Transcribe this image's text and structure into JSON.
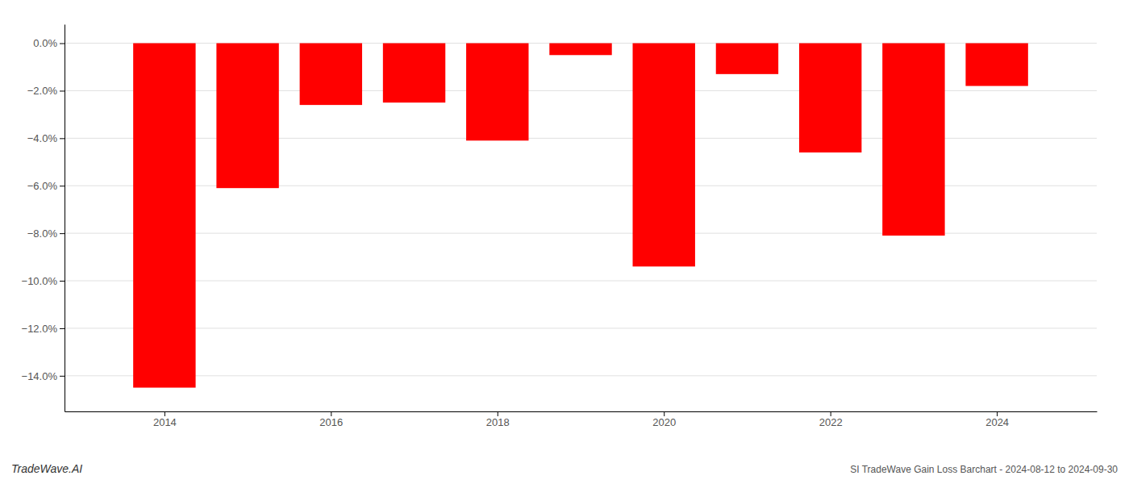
{
  "chart_data": {
    "type": "bar",
    "x": [
      2014,
      2015,
      2016,
      2017,
      2018,
      2019,
      2020,
      2021,
      2022,
      2023,
      2024
    ],
    "values": [
      -14.5,
      -6.1,
      -2.6,
      -2.5,
      -4.1,
      -0.5,
      -9.4,
      -1.3,
      -4.6,
      -8.1,
      -1.8
    ],
    "color": "#ff0000",
    "xlim": [
      2012.8,
      2025.2
    ],
    "xticks": [
      2014,
      2016,
      2018,
      2020,
      2022,
      2024
    ],
    "ylim": [
      -15.5,
      0.8
    ],
    "yticks": [
      {
        "value": 0.0,
        "label": "0.0%"
      },
      {
        "value": -2.0,
        "label": "−2.0%"
      },
      {
        "value": -4.0,
        "label": "−4.0%"
      },
      {
        "value": -6.0,
        "label": "−6.0%"
      },
      {
        "value": -8.0,
        "label": "−8.0%"
      },
      {
        "value": -10.0,
        "label": "−10.0%"
      },
      {
        "value": -12.0,
        "label": "−12.0%"
      },
      {
        "value": -14.0,
        "label": "−14.0%"
      }
    ],
    "grid": true,
    "annotations": [
      "TradeWave.AI",
      "SI TradeWave Gain Loss Barchart - 2024-08-12 to 2024-09-30"
    ]
  }
}
